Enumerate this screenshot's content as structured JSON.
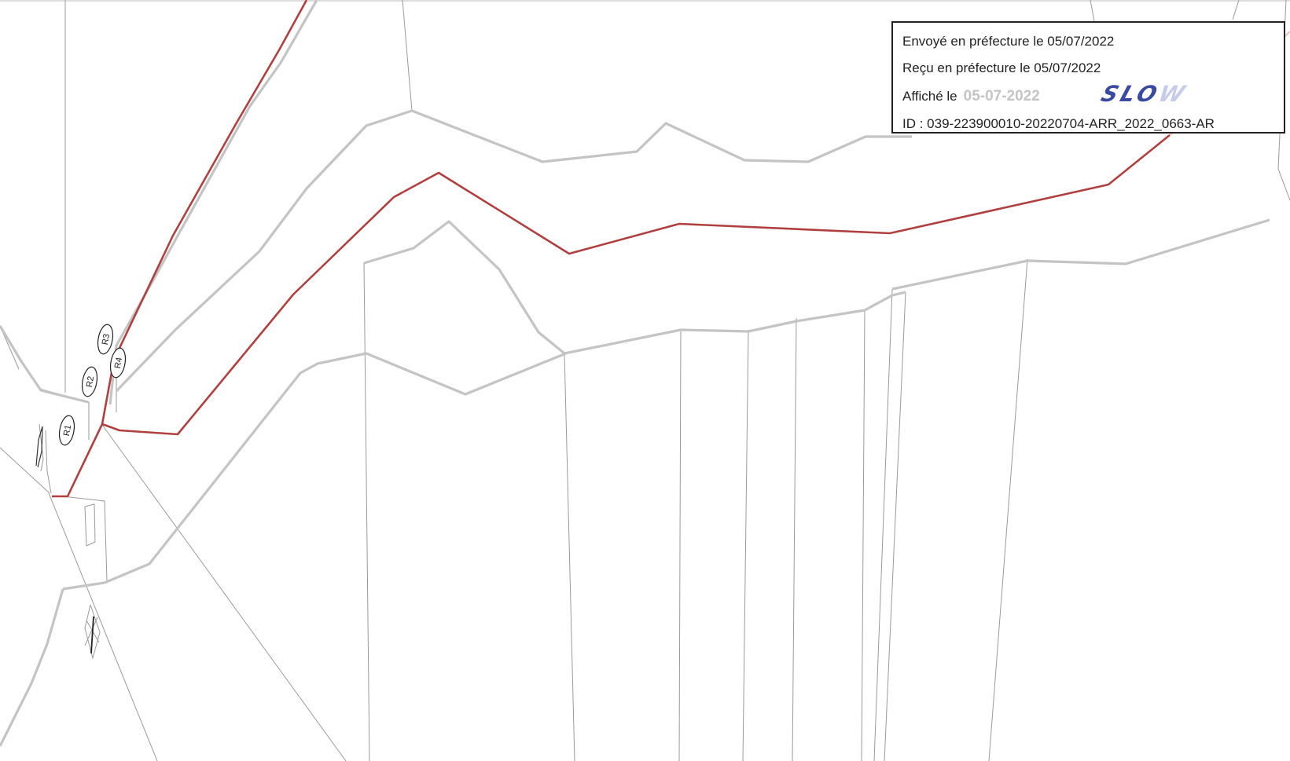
{
  "stamp": {
    "envoye_label": "Envoyé en préfecture le 05/07/2022",
    "recu_label": "Reçu en préfecture le 05/07/2022",
    "affiche_prefix": "Affiché le",
    "affiche_date": "05-07-2022",
    "logo_text": "SLO",
    "logo_fade": "W",
    "id_label": "ID : 039-223900010-20220704-ARR_2022_0663-AR"
  },
  "markers": [
    "R1",
    "R2",
    "R3",
    "R4"
  ],
  "colors": {
    "route_red": "#b04040",
    "parcel_gray": "#c4c4c4",
    "thin_line": "#9a9a9a",
    "stamp_border": "#222222"
  }
}
